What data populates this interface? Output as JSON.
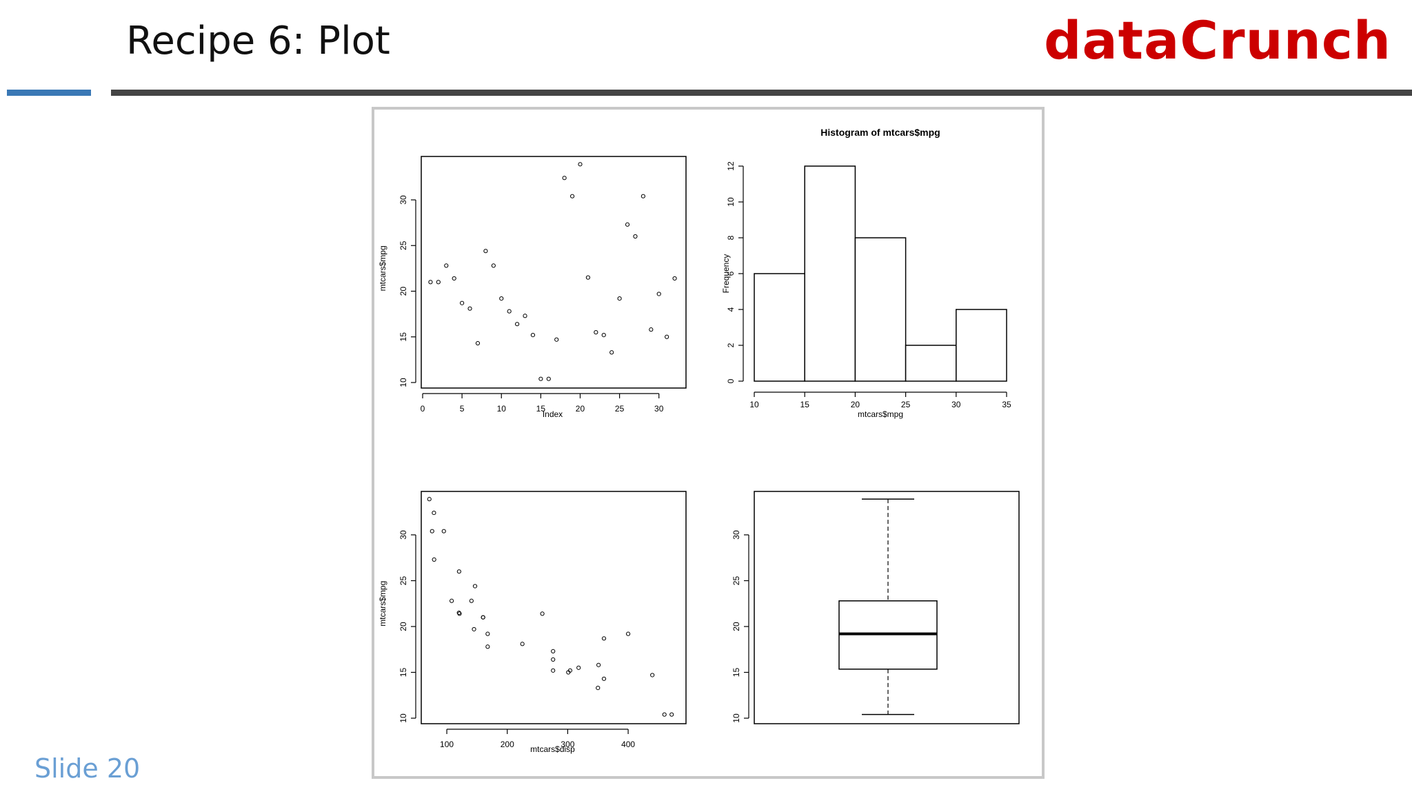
{
  "slide": {
    "title": "Recipe 6: Plot",
    "brand": "dataCrunch",
    "number": "Slide 20"
  },
  "colors": {
    "brand": "#cc0000",
    "accent_rule": "#3a78b5",
    "dark_rule": "#444444",
    "slide_number": "#6a9fd4",
    "frame_border": "#c8c8c8"
  },
  "chart_data": [
    {
      "type": "scatter",
      "title": "",
      "xlabel": "Index",
      "ylabel": "mtcars$mpg",
      "xlim": [
        0,
        33
      ],
      "ylim": [
        10,
        35
      ],
      "xticks": [
        0,
        5,
        10,
        15,
        20,
        25,
        30
      ],
      "yticks": [
        10,
        15,
        20,
        25,
        30
      ],
      "points": [
        [
          1,
          21.0
        ],
        [
          2,
          21.0
        ],
        [
          3,
          22.8
        ],
        [
          4,
          21.4
        ],
        [
          5,
          18.7
        ],
        [
          6,
          18.1
        ],
        [
          7,
          14.3
        ],
        [
          8,
          24.4
        ],
        [
          9,
          22.8
        ],
        [
          10,
          19.2
        ],
        [
          11,
          17.8
        ],
        [
          12,
          16.4
        ],
        [
          13,
          17.3
        ],
        [
          14,
          15.2
        ],
        [
          15,
          10.4
        ],
        [
          16,
          10.4
        ],
        [
          17,
          14.7
        ],
        [
          18,
          32.4
        ],
        [
          19,
          30.4
        ],
        [
          20,
          33.9
        ],
        [
          21,
          21.5
        ],
        [
          22,
          15.5
        ],
        [
          23,
          15.2
        ],
        [
          24,
          13.3
        ],
        [
          25,
          19.2
        ],
        [
          26,
          27.3
        ],
        [
          27,
          26.0
        ],
        [
          28,
          30.4
        ],
        [
          29,
          15.8
        ],
        [
          30,
          19.7
        ],
        [
          31,
          15.0
        ],
        [
          32,
          21.4
        ]
      ]
    },
    {
      "type": "bar",
      "title": "Histogram of mtcars$mpg",
      "xlabel": "mtcars$mpg",
      "ylabel": "Frequency",
      "bins": [
        [
          10,
          15
        ],
        [
          15,
          20
        ],
        [
          20,
          25
        ],
        [
          25,
          30
        ],
        [
          30,
          35
        ]
      ],
      "counts": [
        6,
        12,
        8,
        2,
        4
      ],
      "xlim": [
        10,
        35
      ],
      "ylim": [
        0,
        12
      ],
      "xticks": [
        10,
        15,
        20,
        25,
        30,
        35
      ],
      "yticks": [
        0,
        2,
        4,
        6,
        8,
        10,
        12
      ]
    },
    {
      "type": "scatter",
      "title": "",
      "xlabel": "mtcars$disp",
      "ylabel": "mtcars$mpg",
      "xlim": [
        60,
        490
      ],
      "ylim": [
        10,
        35
      ],
      "xticks": [
        100,
        200,
        300,
        400
      ],
      "yticks": [
        10,
        15,
        20,
        25,
        30
      ],
      "points": [
        [
          160,
          21.0
        ],
        [
          160,
          21.0
        ],
        [
          108,
          22.8
        ],
        [
          258,
          21.4
        ],
        [
          360,
          18.7
        ],
        [
          225,
          18.1
        ],
        [
          360,
          14.3
        ],
        [
          146.7,
          24.4
        ],
        [
          140.8,
          22.8
        ],
        [
          167.6,
          19.2
        ],
        [
          167.6,
          17.8
        ],
        [
          275.8,
          16.4
        ],
        [
          275.8,
          17.3
        ],
        [
          275.8,
          15.2
        ],
        [
          472,
          10.4
        ],
        [
          460,
          10.4
        ],
        [
          440,
          14.7
        ],
        [
          78.7,
          32.4
        ],
        [
          75.7,
          30.4
        ],
        [
          71.1,
          33.9
        ],
        [
          120.1,
          21.5
        ],
        [
          318,
          15.5
        ],
        [
          304,
          15.2
        ],
        [
          350,
          13.3
        ],
        [
          400,
          19.2
        ],
        [
          79,
          27.3
        ],
        [
          120.3,
          26.0
        ],
        [
          95.1,
          30.4
        ],
        [
          351,
          15.8
        ],
        [
          145,
          19.7
        ],
        [
          301,
          15.0
        ],
        [
          121,
          21.4
        ]
      ]
    },
    {
      "type": "box",
      "title": "",
      "ylim": [
        10,
        35
      ],
      "yticks": [
        10,
        15,
        20,
        25,
        30
      ],
      "whisker_low": 10.4,
      "q1": 15.35,
      "median": 19.2,
      "q3": 22.8,
      "whisker_high": 33.9
    }
  ]
}
